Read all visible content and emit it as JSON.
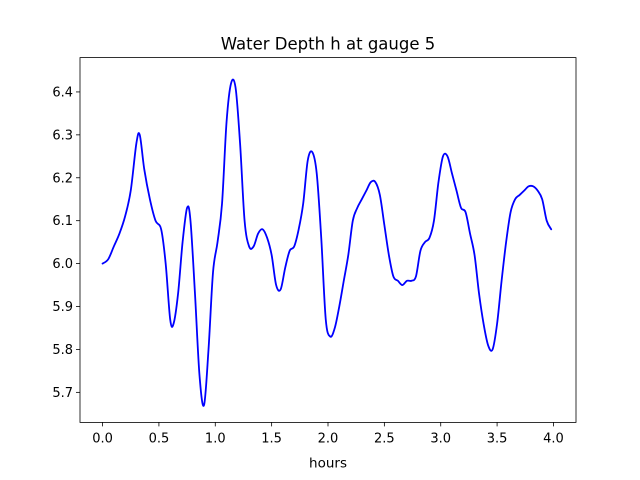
{
  "chart_data": {
    "type": "line",
    "title": "Water Depth h at gauge 5",
    "xlabel": "hours",
    "ylabel": "",
    "xlim": [
      -0.2,
      4.2
    ],
    "ylim": [
      5.63,
      6.48
    ],
    "xticks": [
      0.0,
      0.5,
      1.0,
      1.5,
      2.0,
      2.5,
      3.0,
      3.5,
      4.0
    ],
    "xtick_labels": [
      "0.0",
      "0.5",
      "1.0",
      "1.5",
      "2.0",
      "2.5",
      "3.0",
      "3.5",
      "4.0"
    ],
    "yticks": [
      5.7,
      5.8,
      5.9,
      6.0,
      6.1,
      6.2,
      6.3,
      6.4
    ],
    "ytick_labels": [
      "5.7",
      "5.8",
      "5.9",
      "6.0",
      "6.1",
      "6.2",
      "6.3",
      "6.4"
    ],
    "grid": false,
    "series": [
      {
        "color": "#0000ff",
        "x": [
          0.0,
          0.05,
          0.1,
          0.15,
          0.2,
          0.25,
          0.3,
          0.33,
          0.37,
          0.42,
          0.47,
          0.52,
          0.56,
          0.6,
          0.63,
          0.67,
          0.71,
          0.75,
          0.78,
          0.82,
          0.86,
          0.9,
          0.94,
          0.98,
          1.02,
          1.06,
          1.1,
          1.14,
          1.18,
          1.22,
          1.26,
          1.3,
          1.34,
          1.38,
          1.42,
          1.46,
          1.5,
          1.54,
          1.58,
          1.62,
          1.66,
          1.7,
          1.74,
          1.78,
          1.82,
          1.86,
          1.9,
          1.94,
          1.98,
          2.02,
          2.06,
          2.1,
          2.14,
          2.18,
          2.22,
          2.26,
          2.3,
          2.34,
          2.38,
          2.42,
          2.46,
          2.5,
          2.54,
          2.58,
          2.62,
          2.66,
          2.7,
          2.74,
          2.78,
          2.82,
          2.86,
          2.9,
          2.94,
          2.98,
          3.02,
          3.06,
          3.1,
          3.14,
          3.18,
          3.22,
          3.26,
          3.3,
          3.34,
          3.38,
          3.42,
          3.46,
          3.5,
          3.54,
          3.58,
          3.62,
          3.66,
          3.7,
          3.74,
          3.78,
          3.82,
          3.86,
          3.9,
          3.94,
          3.98
        ],
        "y": [
          6.0,
          6.01,
          6.04,
          6.07,
          6.11,
          6.17,
          6.28,
          6.3,
          6.22,
          6.15,
          6.1,
          6.08,
          6.0,
          5.87,
          5.86,
          5.93,
          6.05,
          6.13,
          6.1,
          5.93,
          5.74,
          5.67,
          5.8,
          5.98,
          6.05,
          6.14,
          6.33,
          6.42,
          6.41,
          6.28,
          6.1,
          6.04,
          6.04,
          6.07,
          6.08,
          6.06,
          6.02,
          5.95,
          5.94,
          5.99,
          6.03,
          6.04,
          6.08,
          6.14,
          6.24,
          6.26,
          6.21,
          6.06,
          5.87,
          5.83,
          5.85,
          5.9,
          5.96,
          6.02,
          6.1,
          6.13,
          6.15,
          6.17,
          6.19,
          6.19,
          6.16,
          6.09,
          6.02,
          5.97,
          5.96,
          5.95,
          5.96,
          5.96,
          5.97,
          6.03,
          6.05,
          6.06,
          6.1,
          6.19,
          6.25,
          6.25,
          6.21,
          6.17,
          6.13,
          6.12,
          6.07,
          6.02,
          5.93,
          5.86,
          5.81,
          5.8,
          5.86,
          5.96,
          6.05,
          6.12,
          6.15,
          6.16,
          6.17,
          6.18,
          6.18,
          6.17,
          6.15,
          6.1,
          6.08
        ]
      }
    ]
  }
}
